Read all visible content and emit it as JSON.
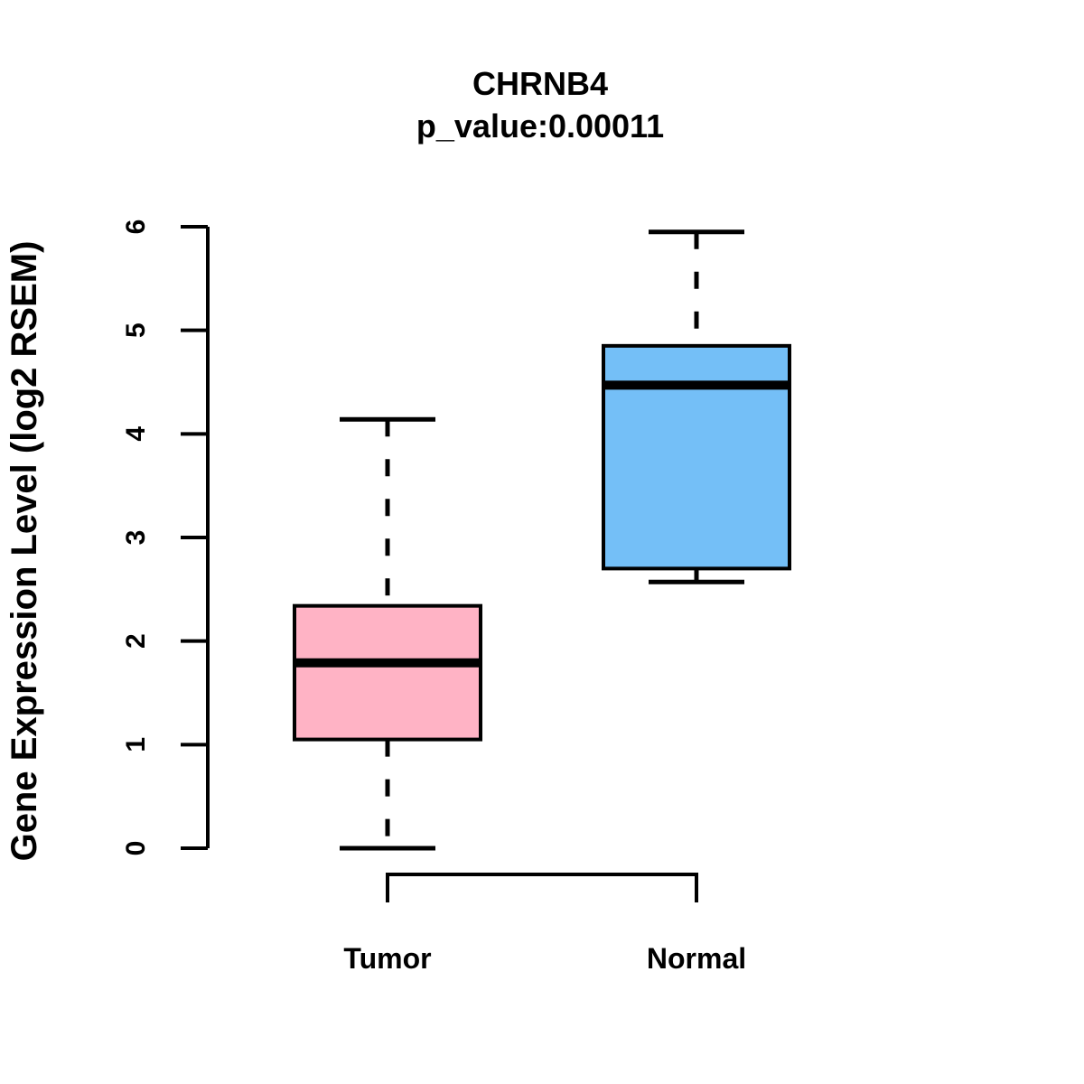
{
  "chart_data": {
    "type": "boxplot",
    "title": "CHRNB4",
    "subtitle": "p_value:0.00011",
    "ylabel": "Gene Expression Level (log2 RSEM)",
    "xlabel": "",
    "categories": [
      "Tumor",
      "Normal"
    ],
    "yticks": [
      "0",
      "1",
      "2",
      "3",
      "4",
      "5",
      "6"
    ],
    "ylim": [
      0,
      6
    ],
    "grid": "off",
    "legend": "none",
    "series": [
      {
        "name": "Tumor",
        "whisker_low": 0.0,
        "q1": 1.05,
        "median": 1.79,
        "q3": 2.34,
        "whisker_high": 4.14,
        "fill_color": "#FFB3C5"
      },
      {
        "name": "Normal",
        "whisker_low": 2.57,
        "q1": 2.7,
        "median": 4.47,
        "q3": 4.85,
        "whisker_high": 5.95,
        "fill_color": "#74BFF7"
      }
    ],
    "colors": {
      "line": "#000000",
      "background": "#FFFFFF",
      "tumor_fill": "#FFB3C5",
      "normal_fill": "#74BFF7"
    }
  }
}
